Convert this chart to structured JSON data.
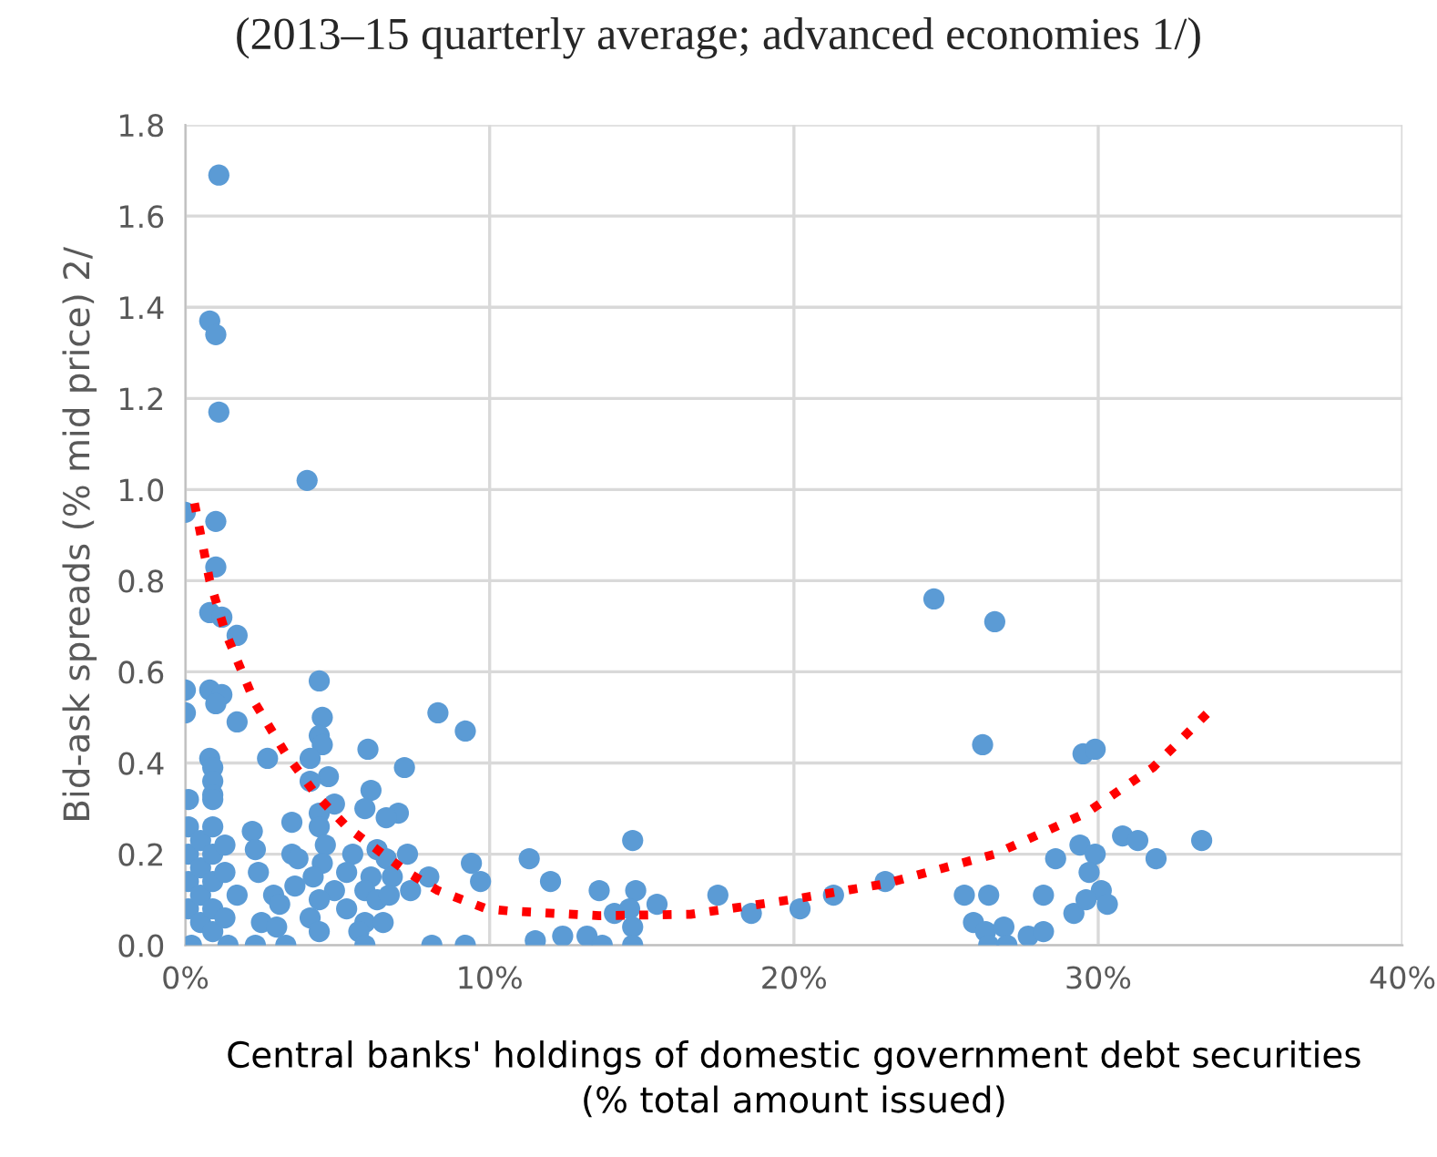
{
  "chart_data": {
    "type": "scatter",
    "title": "(2013–15 quarterly average; advanced economies 1/)",
    "xlabel": "Central banks' holdings of domestic government debt securities\n(% total amount issued)",
    "ylabel": "Bid-ask spreads (% mid price) 2/",
    "xlim": [
      0,
      40
    ],
    "ylim": [
      0,
      1.8
    ],
    "xticks": [
      {
        "value": 0,
        "label": "0%"
      },
      {
        "value": 10,
        "label": "10%"
      },
      {
        "value": 20,
        "label": "20%"
      },
      {
        "value": 30,
        "label": "30%"
      },
      {
        "value": 40,
        "label": "40%"
      }
    ],
    "yticks": [
      {
        "value": 0,
        "label": "0.0"
      },
      {
        "value": 0.2,
        "label": "0.2"
      },
      {
        "value": 0.4,
        "label": "0.4"
      },
      {
        "value": 0.6,
        "label": "0.6"
      },
      {
        "value": 0.8,
        "label": "0.8"
      },
      {
        "value": 1.0,
        "label": "1.0"
      },
      {
        "value": 1.2,
        "label": "1.2"
      },
      {
        "value": 1.4,
        "label": "1.4"
      },
      {
        "value": 1.6,
        "label": "1.6"
      },
      {
        "value": 1.8,
        "label": "1.8"
      }
    ],
    "grid": true,
    "legend": false,
    "series": [
      {
        "color": "#5b9bd5",
        "marker": "circle",
        "x": [
          1.1,
          0.8,
          1.0,
          1.1,
          4.0,
          0.0,
          1.0,
          1.0,
          0.8,
          1.2,
          1.7,
          0.0,
          0.0,
          0.8,
          1.2,
          1.0,
          1.7,
          4.4,
          4.5,
          4.4,
          4.5,
          2.7,
          4.1,
          6.0,
          7.2,
          8.3,
          9.2,
          4.7,
          4.1,
          0.8,
          0.9,
          0.9,
          0.9,
          0.9,
          0.1,
          4.9,
          6.1,
          5.9,
          7.0,
          6.6,
          4.4,
          4.4,
          3.5,
          2.2,
          2.3,
          4.6,
          3.5,
          3.7,
          4.5,
          5.5,
          6.3,
          6.6,
          7.3,
          9.4,
          9.7,
          11.3,
          8.0,
          2.4,
          4.2,
          5.3,
          6.1,
          6.8,
          1.7,
          2.9,
          3.1,
          3.6,
          4.9,
          4.4,
          5.3,
          4.1,
          5.9,
          6.3,
          6.7,
          7.4,
          2.5,
          3.0,
          4.4,
          5.9,
          6.5,
          5.7,
          2.3,
          3.3,
          5.9,
          8.1,
          9.2,
          1.4,
          0.2,
          0.1,
          0.1,
          0.1,
          0.1,
          0.5,
          0.5,
          0.5,
          0.5,
          0.9,
          0.9,
          0.9,
          0.9,
          0.9,
          1.3,
          1.3,
          1.3,
          12.0,
          11.5,
          12.4,
          13.2,
          13.7,
          13.6,
          14.1,
          14.7,
          14.8,
          14.6,
          14.7,
          14.7,
          15.5,
          17.5,
          18.6,
          20.2,
          21.3,
          23.0,
          24.6,
          26.6,
          26.2,
          29.5,
          29.9,
          25.6,
          26.4,
          25.9,
          26.3,
          26.9,
          26.4,
          27.0,
          27.7,
          28.2,
          28.2,
          28.6,
          29.2,
          29.4,
          29.9,
          29.7,
          30.1,
          29.6,
          30.3,
          30.8,
          31.3,
          31.9,
          33.4
        ],
        "values": [
          1.69,
          1.37,
          1.34,
          1.17,
          1.02,
          0.95,
          0.93,
          0.83,
          0.73,
          0.72,
          0.68,
          0.56,
          0.51,
          0.56,
          0.55,
          0.53,
          0.49,
          0.58,
          0.5,
          0.46,
          0.44,
          0.41,
          0.41,
          0.43,
          0.39,
          0.51,
          0.47,
          0.37,
          0.36,
          0.41,
          0.39,
          0.36,
          0.33,
          0.32,
          0.32,
          0.31,
          0.34,
          0.3,
          0.29,
          0.28,
          0.29,
          0.26,
          0.27,
          0.25,
          0.21,
          0.22,
          0.2,
          0.19,
          0.18,
          0.2,
          0.21,
          0.19,
          0.2,
          0.18,
          0.14,
          0.19,
          0.15,
          0.16,
          0.15,
          0.16,
          0.15,
          0.15,
          0.11,
          0.11,
          0.09,
          0.13,
          0.12,
          0.1,
          0.08,
          0.06,
          0.12,
          0.1,
          0.11,
          0.12,
          0.05,
          0.04,
          0.03,
          0.05,
          0.05,
          0.03,
          0.0,
          0.0,
          0.0,
          0.0,
          0.0,
          0.0,
          0.0,
          0.26,
          0.2,
          0.14,
          0.08,
          0.23,
          0.17,
          0.11,
          0.05,
          0.26,
          0.2,
          0.14,
          0.08,
          0.03,
          0.22,
          0.16,
          0.06,
          0.14,
          0.01,
          0.02,
          0.02,
          0.0,
          0.12,
          0.07,
          0.23,
          0.12,
          0.08,
          0.04,
          0.0,
          0.09,
          0.11,
          0.07,
          0.08,
          0.11,
          0.14,
          0.76,
          0.71,
          0.44,
          0.42,
          0.43,
          0.11,
          0.11,
          0.05,
          0.03,
          0.04,
          0.0,
          0.0,
          0.02,
          0.03,
          0.11,
          0.19,
          0.07,
          0.22,
          0.2,
          0.16,
          0.12,
          0.1,
          0.09,
          0.24,
          0.23,
          0.19,
          0.23
        ]
      },
      {
        "type": "line",
        "color": "#ff0000",
        "line_style": "dotted",
        "marker": "none",
        "x": [
          0.3,
          0.8,
          1.3,
          2.3,
          3.3,
          4.3,
          5.3,
          6.3,
          7.3,
          8.3,
          9.9,
          10.7,
          13.6,
          16.6,
          19.9,
          23.0,
          26.6,
          29.6,
          31.8,
          33.6
        ],
        "values": [
          0.97,
          0.8,
          0.69,
          0.53,
          0.42,
          0.33,
          0.26,
          0.21,
          0.16,
          0.12,
          0.08,
          0.075,
          0.065,
          0.068,
          0.1,
          0.135,
          0.2,
          0.29,
          0.39,
          0.51
        ]
      }
    ]
  }
}
